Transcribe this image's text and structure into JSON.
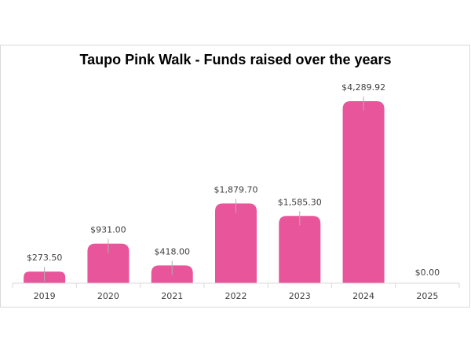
{
  "chart_data": {
    "type": "bar",
    "title": "Taupo Pink Walk - Funds raised over the years",
    "categories": [
      "2019",
      "2020",
      "2021",
      "2022",
      "2023",
      "2024",
      "2025"
    ],
    "values": [
      273.5,
      931.0,
      418.0,
      1879.7,
      1585.3,
      4289.92,
      0.0
    ],
    "data_labels": [
      "$273.50",
      "$931.00",
      "$418.00",
      "$1,879.70",
      "$1,585.30",
      "$4,289.92",
      "$0.00"
    ],
    "xlabel": "",
    "ylabel": "",
    "ylim": [
      0,
      4289.92
    ],
    "grid": false,
    "legend": "none",
    "bar_color": "#e8559a",
    "axis_color": "#d9d9d9",
    "label_color": "#404040",
    "leader_line_color": "#b0b0b0"
  }
}
